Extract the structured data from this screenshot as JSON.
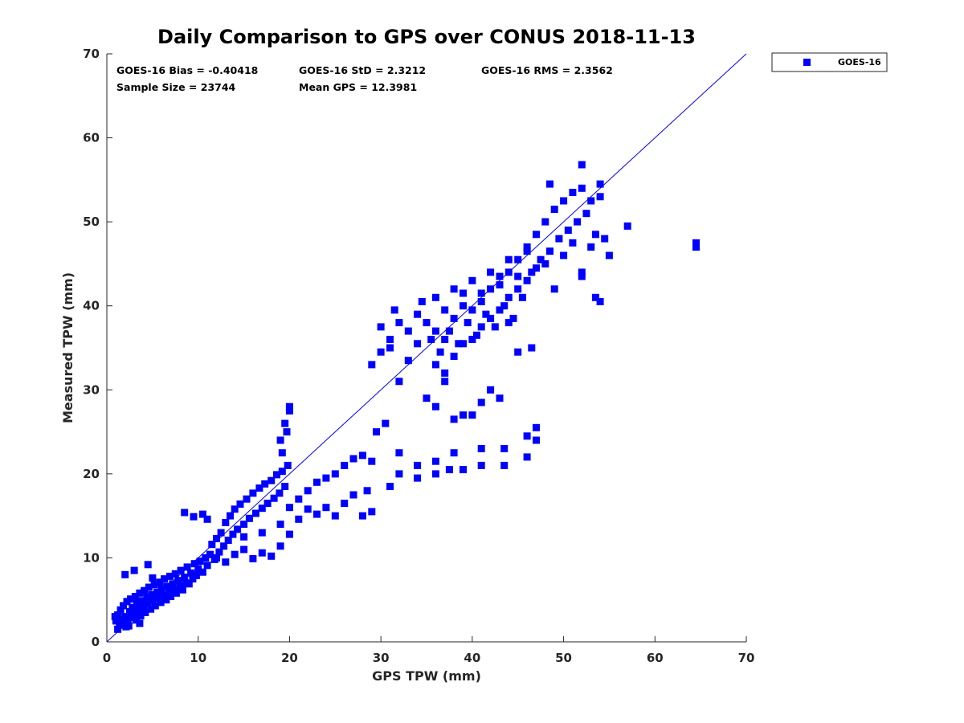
{
  "chart_data": {
    "type": "scatter",
    "title": "Daily Comparison to GPS over CONUS 2018-11-13",
    "xlabel": "GPS TPW (mm)",
    "ylabel": "Measured TPW (mm)",
    "xlim": [
      0,
      70
    ],
    "ylim": [
      0,
      70
    ],
    "xticks": [
      "0",
      "10",
      "20",
      "30",
      "40",
      "50",
      "60",
      "70"
    ],
    "yticks": [
      "0",
      "10",
      "20",
      "30",
      "40",
      "50",
      "60",
      "70"
    ],
    "grid": false,
    "legend": {
      "position": "outside-top-right",
      "entries": [
        "GOES-16"
      ]
    },
    "annotations": [
      "GOES-16 Bias = -0.40418",
      "GOES-16 StD = 2.3212",
      "GOES-16 RMS = 2.3562",
      "Sample Size = 23744",
      "Mean GPS = 12.3981"
    ],
    "reference_line": {
      "from": [
        0,
        0
      ],
      "to": [
        70,
        70
      ]
    },
    "series": [
      {
        "name": "GOES-16",
        "color": "#0000ff",
        "marker": "square",
        "points": [
          [
            1,
            2.5
          ],
          [
            1.2,
            3.2
          ],
          [
            1.4,
            2.0
          ],
          [
            1.5,
            3.8
          ],
          [
            1.7,
            2.6
          ],
          [
            1.8,
            4.3
          ],
          [
            2.0,
            3.0
          ],
          [
            2.1,
            1.8
          ],
          [
            2.2,
            4.8
          ],
          [
            2.3,
            2.4
          ],
          [
            2.5,
            3.6
          ],
          [
            2.6,
            5.1
          ],
          [
            2.7,
            2.9
          ],
          [
            2.8,
            4.1
          ],
          [
            3.0,
            3.3
          ],
          [
            3.1,
            5.4
          ],
          [
            3.2,
            2.6
          ],
          [
            3.3,
            4.6
          ],
          [
            3.5,
            3.9
          ],
          [
            3.6,
            5.8
          ],
          [
            3.7,
            3.1
          ],
          [
            3.8,
            4.9
          ],
          [
            4.0,
            4.2
          ],
          [
            4.1,
            6.1
          ],
          [
            4.2,
            3.5
          ],
          [
            4.4,
            5.3
          ],
          [
            4.5,
            4.6
          ],
          [
            4.6,
            6.5
          ],
          [
            4.8,
            3.9
          ],
          [
            4.9,
            5.6
          ],
          [
            5.0,
            4.9
          ],
          [
            5.2,
            6.8
          ],
          [
            5.3,
            4.3
          ],
          [
            5.5,
            5.9
          ],
          [
            5.6,
            5.2
          ],
          [
            5.8,
            7.1
          ],
          [
            5.9,
            4.7
          ],
          [
            6.0,
            6.3
          ],
          [
            6.2,
            5.5
          ],
          [
            6.3,
            7.5
          ],
          [
            6.5,
            5.0
          ],
          [
            6.6,
            6.6
          ],
          [
            6.8,
            5.8
          ],
          [
            6.9,
            7.8
          ],
          [
            7.0,
            5.4
          ],
          [
            7.2,
            6.9
          ],
          [
            7.3,
            6.2
          ],
          [
            7.5,
            8.1
          ],
          [
            7.6,
            5.8
          ],
          [
            7.8,
            7.3
          ],
          [
            8.0,
            6.6
          ],
          [
            8.1,
            8.5
          ],
          [
            8.3,
            6.2
          ],
          [
            8.5,
            7.7
          ],
          [
            8.6,
            7.0
          ],
          [
            8.8,
            8.9
          ],
          [
            9.0,
            6.9
          ],
          [
            9.2,
            8.2
          ],
          [
            9.4,
            7.5
          ],
          [
            9.6,
            9.3
          ],
          [
            9.8,
            7.9
          ],
          [
            10.0,
            8.7
          ],
          [
            10.2,
            9.6
          ],
          [
            10.5,
            8.3
          ],
          [
            10.8,
            10.0
          ],
          [
            11.0,
            9.1
          ],
          [
            11.3,
            10.4
          ],
          [
            11.5,
            11.6
          ],
          [
            11.8,
            9.8
          ],
          [
            12.0,
            12.3
          ],
          [
            12.3,
            10.7
          ],
          [
            12.5,
            13.0
          ],
          [
            12.8,
            11.4
          ],
          [
            13.0,
            14.2
          ],
          [
            13.3,
            12.1
          ],
          [
            13.5,
            15.0
          ],
          [
            13.8,
            12.8
          ],
          [
            14.0,
            15.8
          ],
          [
            14.3,
            13.4
          ],
          [
            14.6,
            16.4
          ],
          [
            15.0,
            14.0
          ],
          [
            15.3,
            17.0
          ],
          [
            15.6,
            14.7
          ],
          [
            16.0,
            17.7
          ],
          [
            16.3,
            15.3
          ],
          [
            16.7,
            18.3
          ],
          [
            17.0,
            15.9
          ],
          [
            17.3,
            18.8
          ],
          [
            17.6,
            16.5
          ],
          [
            18.0,
            19.2
          ],
          [
            18.3,
            17.1
          ],
          [
            18.6,
            19.9
          ],
          [
            18.9,
            17.7
          ],
          [
            19.2,
            20.3
          ],
          [
            19.5,
            18.5
          ],
          [
            19.8,
            21.0
          ],
          [
            2.0,
            8.0
          ],
          [
            3.0,
            8.5
          ],
          [
            4.5,
            9.2
          ],
          [
            5.0,
            7.6
          ],
          [
            1.2,
            1.5
          ],
          [
            2.4,
            1.9
          ],
          [
            3.6,
            2.2
          ],
          [
            0.9,
            3.0
          ],
          [
            8.5,
            15.4
          ],
          [
            9.5,
            14.9
          ],
          [
            10.5,
            15.2
          ],
          [
            11.0,
            14.6
          ],
          [
            12,
            10.0
          ],
          [
            13,
            9.5
          ],
          [
            14,
            10.4
          ],
          [
            15,
            11.0
          ],
          [
            16,
            9.9
          ],
          [
            17,
            10.6
          ],
          [
            18,
            10.2
          ],
          [
            19,
            11.4
          ],
          [
            20,
            12.8
          ],
          [
            15,
            12.5
          ],
          [
            17,
            13.0
          ],
          [
            19,
            14.0
          ],
          [
            21,
            14.6
          ],
          [
            22,
            15.8
          ],
          [
            23,
            15.2
          ],
          [
            24,
            16.0
          ],
          [
            25,
            15.0
          ],
          [
            26,
            16.5
          ],
          [
            20,
            16.0
          ],
          [
            21,
            17.0
          ],
          [
            22,
            18.0
          ],
          [
            23,
            19.0
          ],
          [
            24,
            19.5
          ],
          [
            25,
            20.0
          ],
          [
            26,
            21.0
          ],
          [
            27,
            21.8
          ],
          [
            28,
            22.2
          ],
          [
            29,
            21.5
          ],
          [
            29.5,
            25.0
          ],
          [
            30.5,
            26.0
          ],
          [
            31,
            18.5
          ],
          [
            32,
            20.0
          ],
          [
            28,
            15.0
          ],
          [
            29,
            15.5
          ],
          [
            27,
            17.5
          ],
          [
            28.5,
            18.0
          ],
          [
            19,
            24.0
          ],
          [
            19.2,
            22.5
          ],
          [
            19.5,
            26.0
          ],
          [
            20,
            27.5
          ],
          [
            20,
            28.0
          ],
          [
            19.7,
            25.0
          ],
          [
            32,
            22.5
          ],
          [
            34,
            21.0
          ],
          [
            36,
            21.5
          ],
          [
            38,
            22.5
          ],
          [
            41,
            23.0
          ],
          [
            43.5,
            23.0
          ],
          [
            46,
            24.5
          ],
          [
            47,
            25.5
          ],
          [
            34,
            19.5
          ],
          [
            36,
            20.0
          ],
          [
            37.5,
            20.5
          ],
          [
            39,
            20.5
          ],
          [
            41,
            21.0
          ],
          [
            43.5,
            21.0
          ],
          [
            46,
            22.0
          ],
          [
            47,
            24.0
          ],
          [
            29,
            33.0
          ],
          [
            30,
            34.5
          ],
          [
            31,
            36.0
          ],
          [
            31.5,
            39.5
          ],
          [
            32,
            38.0
          ],
          [
            33,
            37.0
          ],
          [
            34,
            35.5
          ],
          [
            34.5,
            40.5
          ],
          [
            35,
            38.0
          ],
          [
            35.5,
            36.0
          ],
          [
            36,
            41.0
          ],
          [
            36.5,
            34.5
          ],
          [
            37,
            39.5
          ],
          [
            37.5,
            37.0
          ],
          [
            38,
            42.0
          ],
          [
            38.5,
            35.5
          ],
          [
            39,
            40.0
          ],
          [
            39.5,
            38.0
          ],
          [
            40,
            43.0
          ],
          [
            40.5,
            36.5
          ],
          [
            41,
            41.5
          ],
          [
            41.5,
            39.0
          ],
          [
            42,
            44.0
          ],
          [
            42.5,
            37.5
          ],
          [
            43,
            42.5
          ],
          [
            43.5,
            40.0
          ],
          [
            44,
            45.5
          ],
          [
            44.5,
            38.5
          ],
          [
            45,
            43.5
          ],
          [
            45.5,
            41.0
          ],
          [
            46,
            47.0
          ],
          [
            46.5,
            44.0
          ],
          [
            47,
            48.5
          ],
          [
            47.5,
            45.5
          ],
          [
            48,
            50.0
          ],
          [
            48.5,
            46.5
          ],
          [
            49,
            51.5
          ],
          [
            49.5,
            48.0
          ],
          [
            50,
            52.5
          ],
          [
            50.5,
            49.0
          ],
          [
            51,
            53.5
          ],
          [
            51.5,
            50.0
          ],
          [
            52,
            54.0
          ],
          [
            52.5,
            51.0
          ],
          [
            53,
            52.5
          ],
          [
            53.5,
            48.5
          ],
          [
            54,
            53.0
          ],
          [
            54.5,
            48.0
          ],
          [
            35,
            29.0
          ],
          [
            36,
            28.0
          ],
          [
            37,
            31.0
          ],
          [
            38,
            26.5
          ],
          [
            39,
            27.0
          ],
          [
            40,
            27.0
          ],
          [
            41,
            28.5
          ],
          [
            42,
            30.0
          ],
          [
            43,
            29.0
          ],
          [
            36,
            33.0
          ],
          [
            37,
            32.0
          ],
          [
            38,
            34.0
          ],
          [
            39,
            35.5
          ],
          [
            40,
            36.0
          ],
          [
            41,
            37.5
          ],
          [
            42,
            38.5
          ],
          [
            43,
            39.5
          ],
          [
            44,
            41.0
          ],
          [
            45,
            42.0
          ],
          [
            46,
            43.0
          ],
          [
            47,
            44.5
          ],
          [
            48,
            45.0
          ],
          [
            49,
            42.0
          ],
          [
            50,
            46.0
          ],
          [
            51,
            47.5
          ],
          [
            52,
            44.0
          ],
          [
            53,
            47.0
          ],
          [
            48.5,
            54.5
          ],
          [
            52,
            56.8
          ],
          [
            54,
            54.5
          ],
          [
            57,
            49.5
          ],
          [
            55,
            46.0
          ],
          [
            53.5,
            41.0
          ],
          [
            54,
            40.5
          ],
          [
            52,
            43.5
          ],
          [
            64.5,
            47.5
          ],
          [
            64.5,
            47.0
          ],
          [
            46.5,
            35.0
          ],
          [
            45,
            34.5
          ],
          [
            44,
            38.0
          ],
          [
            30,
            37.5
          ],
          [
            31,
            35.0
          ],
          [
            32,
            31.0
          ],
          [
            33,
            33.5
          ],
          [
            34,
            39.0
          ],
          [
            36,
            37.0
          ],
          [
            37,
            36.0
          ],
          [
            38,
            38.5
          ],
          [
            39,
            41.5
          ],
          [
            40,
            39.5
          ],
          [
            41,
            40.5
          ],
          [
            42,
            42.0
          ],
          [
            43,
            43.5
          ],
          [
            44,
            44.0
          ],
          [
            45,
            45.5
          ],
          [
            46,
            46.5
          ]
        ]
      }
    ]
  }
}
